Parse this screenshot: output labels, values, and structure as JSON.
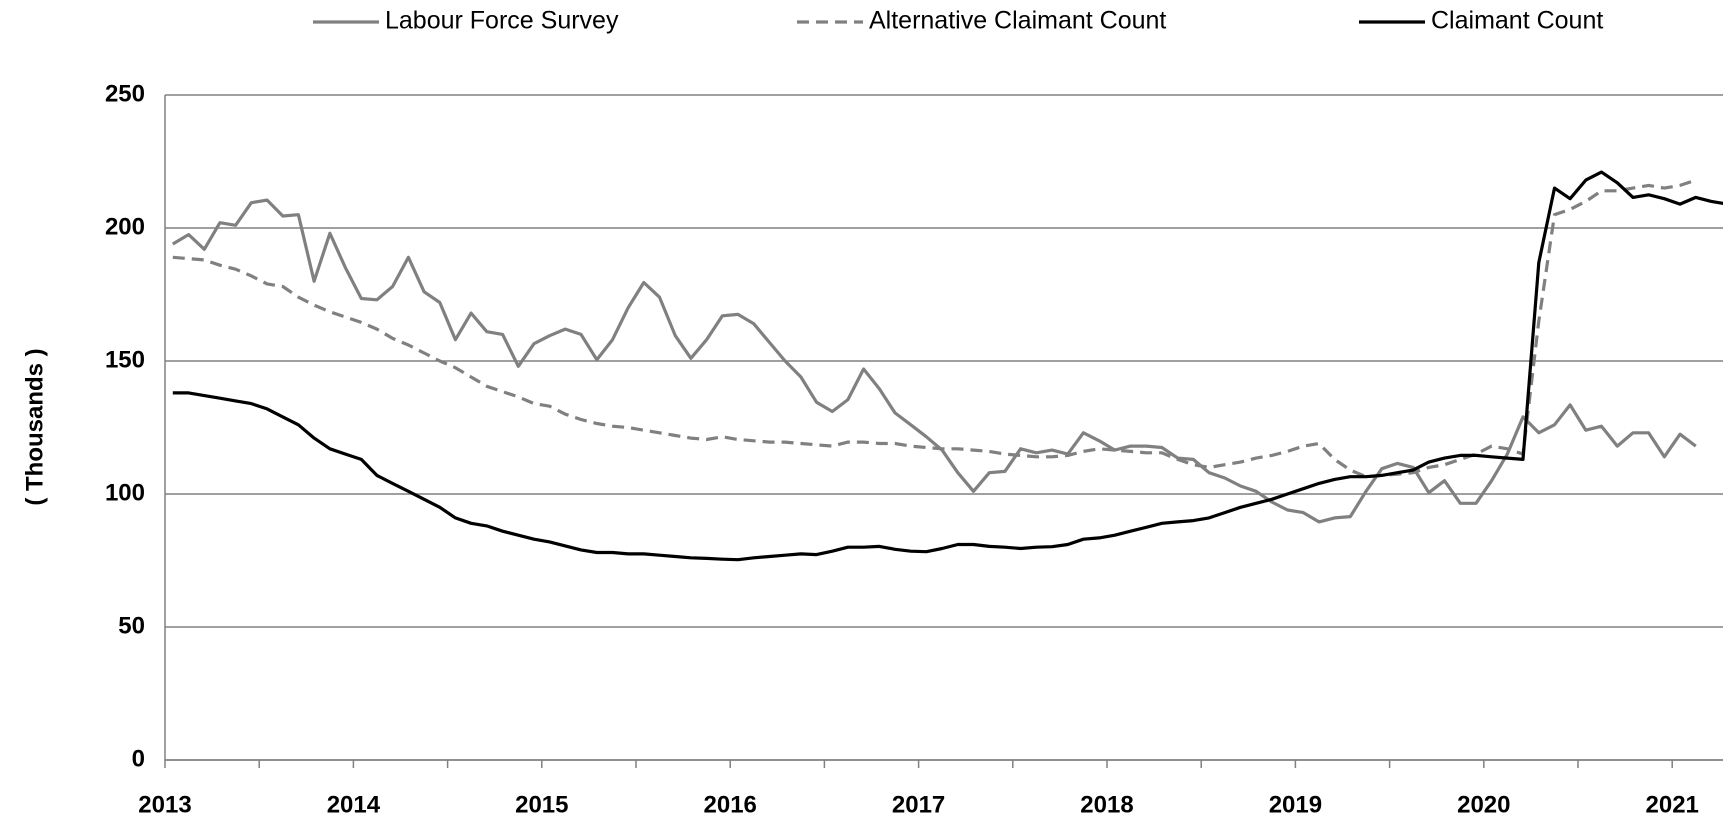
{
  "chart_data": {
    "type": "line",
    "y_label": "( Thousands )",
    "categories": [
      "2013",
      null,
      null,
      null,
      null,
      null,
      null,
      null,
      null,
      null,
      null,
      null,
      "2014",
      null,
      null,
      null,
      null,
      null,
      null,
      null,
      null,
      null,
      null,
      null,
      "2015",
      null,
      null,
      null,
      null,
      null,
      null,
      null,
      null,
      null,
      null,
      null,
      "2016",
      null,
      null,
      null,
      null,
      null,
      null,
      null,
      null,
      null,
      null,
      null,
      "2017",
      null,
      null,
      null,
      null,
      null,
      null,
      null,
      null,
      null,
      null,
      null,
      "2018",
      null,
      null,
      null,
      null,
      null,
      null,
      null,
      null,
      null,
      null,
      null,
      "2019",
      null,
      null,
      null,
      null,
      null,
      null,
      null,
      null,
      null,
      null,
      null,
      "2020",
      null,
      null,
      null,
      null,
      null,
      null,
      null,
      null,
      null,
      null,
      null,
      "2021",
      null,
      null,
      null
    ],
    "series": [
      {
        "name": "Labour Force Survey",
        "color": "#808080",
        "dash": false,
        "values": [
          194,
          197.5,
          192,
          202,
          201,
          209.5,
          210.5,
          204.5,
          205,
          180,
          198,
          185,
          173.5,
          173,
          178,
          189,
          176,
          172,
          158,
          168,
          161,
          160,
          148,
          156.5,
          159.5,
          162,
          160,
          150.5,
          158,
          170,
          179.5,
          174,
          159.5,
          151,
          158,
          167,
          167.5,
          164,
          157,
          150,
          144,
          134.5,
          131,
          135.5,
          147,
          139.5,
          130.5,
          126,
          121.5,
          116.5,
          108,
          101,
          108,
          108.5,
          117,
          115.5,
          116.5,
          115,
          123,
          120,
          116.5,
          118,
          118,
          117.5,
          113.5,
          113,
          108,
          106,
          103,
          101,
          97,
          94,
          93,
          89.5,
          91,
          91.5,
          101,
          109.5,
          111.5,
          110,
          100.5,
          105,
          96.5,
          96.5,
          105,
          115,
          129,
          123,
          126,
          133.5,
          124,
          125.5,
          118,
          123,
          123,
          114,
          122.5,
          118,
          null,
          null
        ]
      },
      {
        "name": "Alternative Claimant Count",
        "color": "#808080",
        "dash": true,
        "values": [
          189,
          188.5,
          188,
          186,
          184.5,
          182,
          179,
          178,
          174,
          171,
          168.5,
          166.5,
          164.5,
          162,
          158.5,
          156,
          153,
          150,
          147.5,
          144,
          140.5,
          138.5,
          136.5,
          134,
          133,
          130,
          128,
          126.5,
          125.5,
          125,
          124,
          123,
          122,
          121,
          120.5,
          121.5,
          120.5,
          120,
          119.5,
          119.5,
          119,
          118.5,
          118,
          119.5,
          119.5,
          119,
          119,
          118,
          117.5,
          117,
          117,
          116.5,
          116,
          115,
          114.5,
          114,
          114,
          114.5,
          116,
          117,
          116.5,
          116,
          115.5,
          115.5,
          113,
          111,
          110,
          111,
          112,
          113.5,
          114.5,
          116,
          118,
          119,
          113,
          109,
          106.5,
          107,
          107.5,
          108,
          110,
          111,
          113,
          115,
          118,
          117,
          115,
          165,
          205,
          207,
          210,
          214,
          214,
          215,
          216,
          215,
          216,
          218,
          null,
          null
        ]
      },
      {
        "name": "Claimant Count",
        "color": "#000000",
        "dash": false,
        "values": [
          138,
          138,
          137,
          136,
          135,
          134,
          132,
          129,
          126,
          121,
          117,
          115,
          113,
          107,
          104,
          101,
          98,
          95,
          91,
          89,
          88,
          86,
          84.5,
          83,
          82,
          80.5,
          79,
          78,
          78,
          77.5,
          77.5,
          77,
          76.5,
          76,
          75.8,
          75.5,
          75.3,
          76,
          76.5,
          77,
          77.5,
          77.2,
          78.5,
          80,
          80,
          80.3,
          79.2,
          78.5,
          78.3,
          79.5,
          81,
          81,
          80.3,
          80,
          79.5,
          80,
          80.2,
          81,
          83,
          83.5,
          84.5,
          86,
          87.5,
          89,
          89.5,
          90,
          91,
          93,
          95,
          96.5,
          98,
          100,
          102,
          104,
          105.5,
          106.5,
          106.5,
          107,
          108,
          109,
          112,
          113.5,
          114.5,
          114.5,
          114,
          113.5,
          113,
          187,
          215,
          211,
          218,
          221,
          217,
          211.5,
          212.5,
          211,
          209,
          211.5,
          210,
          209
        ]
      }
    ],
    "ylim": [
      0,
      250
    ],
    "yticks": [
      0,
      50,
      100,
      150,
      200,
      250
    ],
    "grid": true,
    "legend": "top"
  }
}
